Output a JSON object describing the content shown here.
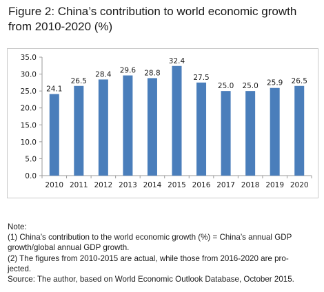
{
  "title_line1": "Figure 2: China’s contribution to world economic growth",
  "title_line2": "from 2010-2020 (%)",
  "chart_data": {
    "type": "bar",
    "categories": [
      "2010",
      "2011",
      "2012",
      "2013",
      "2014",
      "2015",
      "2016",
      "2017",
      "2018",
      "2019",
      "2020"
    ],
    "values": [
      24.1,
      26.5,
      28.4,
      29.6,
      28.8,
      32.4,
      27.5,
      25.0,
      25.0,
      25.9,
      26.5
    ],
    "value_labels": [
      "24.1",
      "26.5",
      "28.4",
      "29.6",
      "28.8",
      "32.4",
      "27.5",
      "25.0",
      "25.0",
      "25.9",
      "26.5"
    ],
    "yticks": [
      "0.0",
      "5.0",
      "10.0",
      "15.0",
      "20.0",
      "25.0",
      "30.0",
      "35.0"
    ],
    "ylim": [
      0,
      35
    ],
    "grid": false,
    "bar_color": "#4a7ebb",
    "title": "",
    "xlabel": "",
    "ylabel": ""
  },
  "notes": {
    "heading": "Note:",
    "line1": "(1) China’s contribution to the world economic growth (%) = China’s annual GDP",
    "line2": "growth/global annual GDP growth.",
    "line3": "(2) The figures from 2010-2015 are actual, while those from 2016-2020 are pro-",
    "line4": "jected.",
    "source": "Source: The author, based on World Economic Outlook Database, October 2015."
  }
}
